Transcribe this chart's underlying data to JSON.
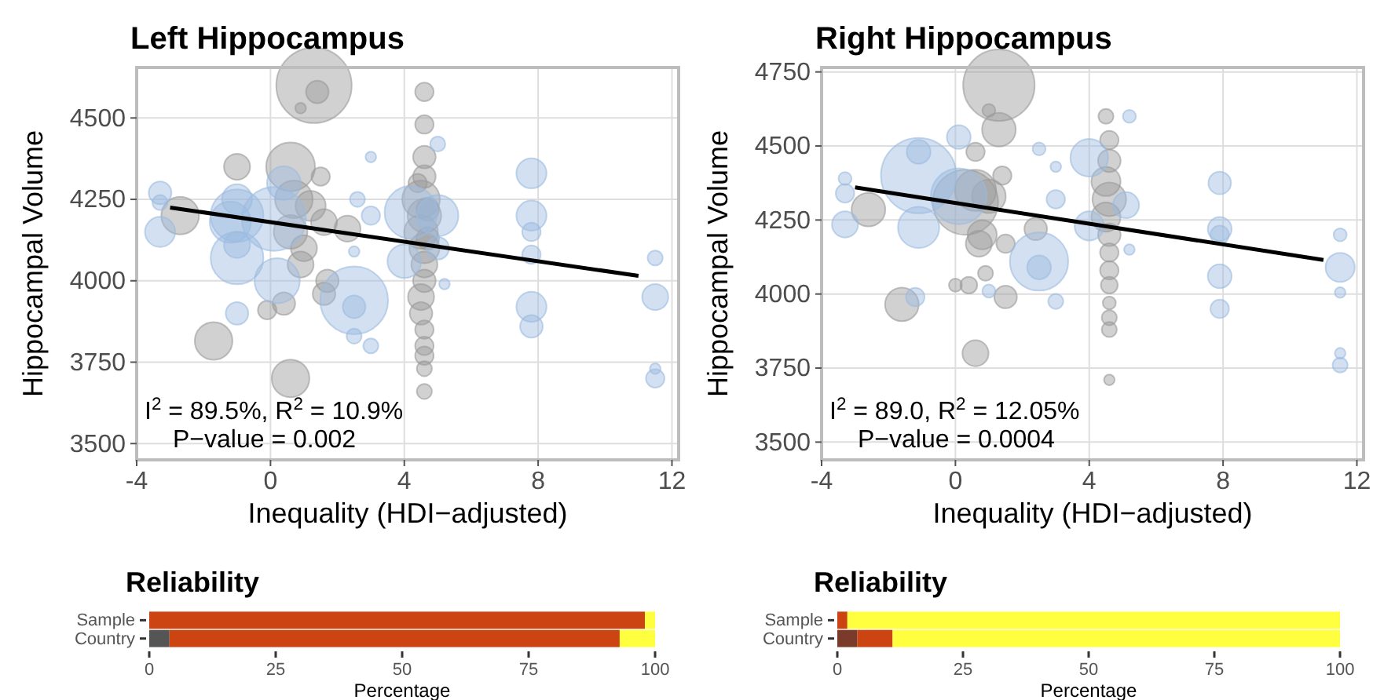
{
  "chart_data": [
    {
      "type": "bubble",
      "title": "Left Hippocampus",
      "xlabel": "Inequality (HDI−adjusted)",
      "ylabel": "Hippocampal Volume",
      "xlim": [
        -4,
        12.2
      ],
      "ylim": [
        3450,
        4655
      ],
      "xticks": [
        -4,
        0,
        4,
        8,
        12
      ],
      "yticks": [
        3500,
        3750,
        4000,
        4250,
        4500
      ],
      "grid": true,
      "annotations": [
        "I$^{2}$ = 89.5%, R$^{2}$ = 10.9%",
        "P−value = 0.002"
      ],
      "series": [
        {
          "color": "#999999",
          "x": [
            1.3,
            1.4,
            0.9,
            -1.7,
            0.6,
            -2.7,
            0.6,
            -1.0,
            0.7,
            1.2,
            1.6,
            0.6,
            1.0,
            0.9,
            1.7,
            1.6,
            0.4,
            -0.1,
            1.5,
            2.3,
            4.6,
            4.6,
            4.6,
            4.6,
            4.5,
            4.6,
            4.5,
            4.6,
            4.6,
            4.6,
            4.5,
            4.5,
            4.6,
            4.6,
            4.6,
            4.6,
            4.6,
            4.4,
            4.7,
            4.7
          ],
          "values": [
            4600,
            4580,
            4530,
            3815,
            3700,
            4200,
            4350,
            4350,
            4250,
            4230,
            4180,
            4150,
            4100,
            4050,
            4000,
            3960,
            3930,
            3910,
            4320,
            4160,
            4580,
            4480,
            4380,
            4320,
            4250,
            4200,
            4150,
            4100,
            4050,
            4000,
            3950,
            3900,
            3850,
            3800,
            3770,
            3730,
            3660,
            4300,
            4220,
            4130
          ],
          "sizes": [
            1,
            0.09,
            0.02,
            0.25,
            0.25,
            0.25,
            0.42,
            0.12,
            0.25,
            0.16,
            0.12,
            0.2,
            0.12,
            0.12,
            0.09,
            0.09,
            0.09,
            0.06,
            0.06,
            0.12,
            0.06,
            0.06,
            0.09,
            0.09,
            0.25,
            0.2,
            0.2,
            0.16,
            0.12,
            0.09,
            0.12,
            0.09,
            0.06,
            0.06,
            0.06,
            0.04,
            0.04,
            0.06,
            0.09,
            0.09
          ]
        },
        {
          "color": "#9bbbe0",
          "x": [
            2.5,
            2.5,
            -1.0,
            -1.0,
            -1.2,
            -1.0,
            -1.0,
            0.1,
            0.2,
            0.4,
            -3.3,
            -3.3,
            -3.3,
            -1.0,
            2.6,
            3.0,
            2.5,
            2.5,
            3.0,
            3.0,
            4.2,
            5.0,
            4.0,
            5.0,
            5.0,
            5.2,
            7.8,
            7.8,
            7.8,
            7.8,
            7.8,
            7.8,
            11.5,
            11.5,
            11.5,
            11.5
          ],
          "values": [
            3940,
            3920,
            4200,
            4070,
            4180,
            4250,
            4110,
            4190,
            4000,
            4300,
            4270,
            4150,
            4240,
            3900,
            4250,
            4200,
            4090,
            3830,
            3800,
            4380,
            4210,
            4200,
            4060,
            4100,
            4420,
            3990,
            4330,
            4200,
            4150,
            4080,
            3920,
            3860,
            3950,
            3700,
            3730,
            4070
          ],
          "sizes": [
            0.81,
            0.09,
            0.49,
            0.49,
            0.3,
            0.16,
            0.12,
            0.72,
            0.36,
            0.2,
            0.09,
            0.16,
            0.04,
            0.09,
            0.04,
            0.06,
            0.02,
            0.04,
            0.04,
            0.02,
            0.49,
            0.3,
            0.2,
            0.09,
            0.04,
            0.02,
            0.16,
            0.16,
            0.06,
            0.06,
            0.16,
            0.09,
            0.12,
            0.06,
            0.02,
            0.04
          ]
        },
        {
          "type": "line",
          "color": "#000000",
          "x": [
            -3,
            11
          ],
          "values": [
            4225,
            4015
          ]
        }
      ]
    },
    {
      "type": "bubble",
      "title": "Right Hippocampus",
      "xlabel": "Inequality (HDI−adjusted)",
      "ylabel": "Hippocampal Volume",
      "xlim": [
        -4,
        12.2
      ],
      "ylim": [
        3440,
        4765
      ],
      "xticks": [
        -4,
        0,
        4,
        8,
        12
      ],
      "yticks": [
        3500,
        3750,
        4000,
        4250,
        4500,
        4750
      ],
      "grid": true,
      "annotations": [
        "I$^{2}$ = 89.0, R$^{2}$ = 12.05%",
        "P−value = 0.0004"
      ],
      "series": [
        {
          "color": "#999999",
          "x": [
            1.3,
            1.3,
            1.0,
            0.6,
            0.3,
            0.6,
            1.0,
            0.8,
            0.7,
            1.4,
            1.5,
            0.9,
            0.0,
            0.4,
            1.5,
            -1.6,
            0.6,
            -2.6,
            2.4,
            4.5,
            4.6,
            4.6,
            4.5,
            4.6,
            4.5,
            4.6,
            4.6,
            4.6,
            4.6,
            4.6,
            4.6,
            4.6,
            4.6
          ],
          "values": [
            4705,
            4555,
            4620,
            4480,
            4310,
            4350,
            4330,
            4200,
            4170,
            4400,
            4170,
            4070,
            4030,
            4030,
            3990,
            3965,
            3800,
            4285,
            4220,
            4600,
            4520,
            4450,
            4380,
            4320,
            4260,
            4200,
            4140,
            4080,
            4030,
            3970,
            3920,
            3880,
            3710
          ],
          "sizes": [
            0.9,
            0.2,
            0.03,
            0.06,
            0.75,
            0.3,
            0.2,
            0.15,
            0.12,
            0.06,
            0.06,
            0.04,
            0.03,
            0.05,
            0.09,
            0.2,
            0.12,
            0.2,
            0.09,
            0.04,
            0.06,
            0.09,
            0.15,
            0.2,
            0.15,
            0.09,
            0.06,
            0.06,
            0.05,
            0.03,
            0.04,
            0.04,
            0.02
          ]
        },
        {
          "color": "#9bbbe0",
          "x": [
            -1.1,
            -1.1,
            -1.1,
            -3.3,
            -3.3,
            -3.3,
            0.1,
            0.1,
            -1.2,
            2.5,
            2.5,
            2.5,
            3.0,
            3.0,
            3.0,
            1.0,
            4.0,
            4.0,
            5.1,
            5.2,
            5.2,
            7.9,
            7.9,
            7.9,
            7.9,
            7.9,
            11.5,
            11.5,
            11.5,
            11.5,
            11.5
          ],
          "values": [
            4400,
            4225,
            4480,
            4235,
            4340,
            4390,
            4330,
            4530,
            3990,
            4110,
            4090,
            4490,
            4320,
            4430,
            3975,
            4010,
            4460,
            4230,
            4300,
            4600,
            4150,
            4375,
            4220,
            4200,
            4060,
            3950,
            4200,
            4090,
            4005,
            3760,
            3800
          ],
          "sizes": [
            1,
            0.3,
            0.1,
            0.12,
            0.06,
            0.03,
            0.55,
            0.1,
            0.06,
            0.6,
            0.1,
            0.03,
            0.06,
            0.02,
            0.04,
            0.03,
            0.25,
            0.15,
            0.12,
            0.03,
            0.02,
            0.09,
            0.1,
            0.06,
            0.1,
            0.06,
            0.03,
            0.15,
            0.02,
            0.04,
            0.02
          ]
        },
        {
          "type": "line",
          "color": "#000000",
          "x": [
            -3,
            11
          ],
          "values": [
            4360,
            4115
          ]
        }
      ]
    },
    {
      "type": "bar",
      "orientation": "horizontal",
      "stacked": true,
      "title": "Reliability",
      "xlabel": "Percentage",
      "categories": [
        "Sample",
        "Country"
      ],
      "xlim": [
        0,
        100
      ],
      "xticks": [
        0,
        25,
        50,
        75,
        100
      ],
      "series": [
        {
          "color": "#555555",
          "values": [
            0,
            4
          ]
        },
        {
          "color": "#cc4411",
          "values": [
            98,
            89
          ]
        },
        {
          "color": "#ffff40",
          "values": [
            2,
            7
          ]
        }
      ]
    },
    {
      "type": "bar",
      "orientation": "horizontal",
      "stacked": true,
      "title": "Reliability",
      "xlabel": "Percentage",
      "categories": [
        "Sample",
        "Country"
      ],
      "xlim": [
        0,
        100
      ],
      "xticks": [
        0,
        25,
        50,
        75,
        100
      ],
      "series": [
        {
          "color": "#7b3b2b",
          "values": [
            0,
            4
          ]
        },
        {
          "color": "#cc4411",
          "values": [
            2,
            7
          ]
        },
        {
          "color": "#ffff40",
          "values": [
            98,
            89
          ]
        }
      ]
    }
  ]
}
